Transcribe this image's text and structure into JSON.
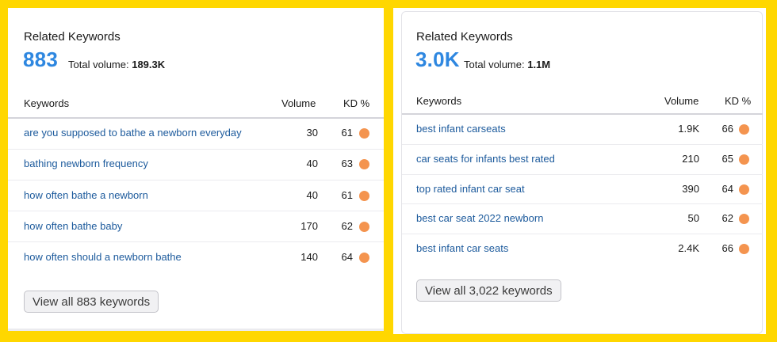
{
  "left_card": {
    "title": "Related Keywords",
    "big_number": "883",
    "total_label": "Total volume:",
    "total_value": "189.3K",
    "columns": {
      "keyword": "Keywords",
      "volume": "Volume",
      "kd": "KD %"
    },
    "rows": [
      {
        "keyword": "are you supposed to bathe a newborn everyday",
        "volume": "30",
        "kd": "61"
      },
      {
        "keyword": "bathing newborn frequency",
        "volume": "40",
        "kd": "63"
      },
      {
        "keyword": "how often bathe a newborn",
        "volume": "40",
        "kd": "61"
      },
      {
        "keyword": "how often bathe baby",
        "volume": "170",
        "kd": "62"
      },
      {
        "keyword": "how often should a newborn bathe",
        "volume": "140",
        "kd": "64"
      }
    ],
    "view_all_label": "View all 883 keywords"
  },
  "right_card": {
    "title": "Related Keywords",
    "big_number": "3.0K",
    "total_label": "Total volume:",
    "total_value": "1.1M",
    "columns": {
      "keyword": "Keywords",
      "volume": "Volume",
      "kd": "KD %"
    },
    "rows": [
      {
        "keyword": "best infant carseats",
        "volume": "1.9K",
        "kd": "66"
      },
      {
        "keyword": "car seats for infants best rated",
        "volume": "210",
        "kd": "65"
      },
      {
        "keyword": "top rated infant car seat",
        "volume": "390",
        "kd": "64"
      },
      {
        "keyword": "best car seat 2022 newborn",
        "volume": "50",
        "kd": "62"
      },
      {
        "keyword": "best infant car seats",
        "volume": "2.4K",
        "kd": "66"
      }
    ],
    "view_all_label": "View all 3,022 keywords"
  },
  "colors": {
    "frame": "#FFD700",
    "accent_number": "#2e87e0",
    "link": "#1c5a9c",
    "kd_dot": "#F4944F"
  }
}
